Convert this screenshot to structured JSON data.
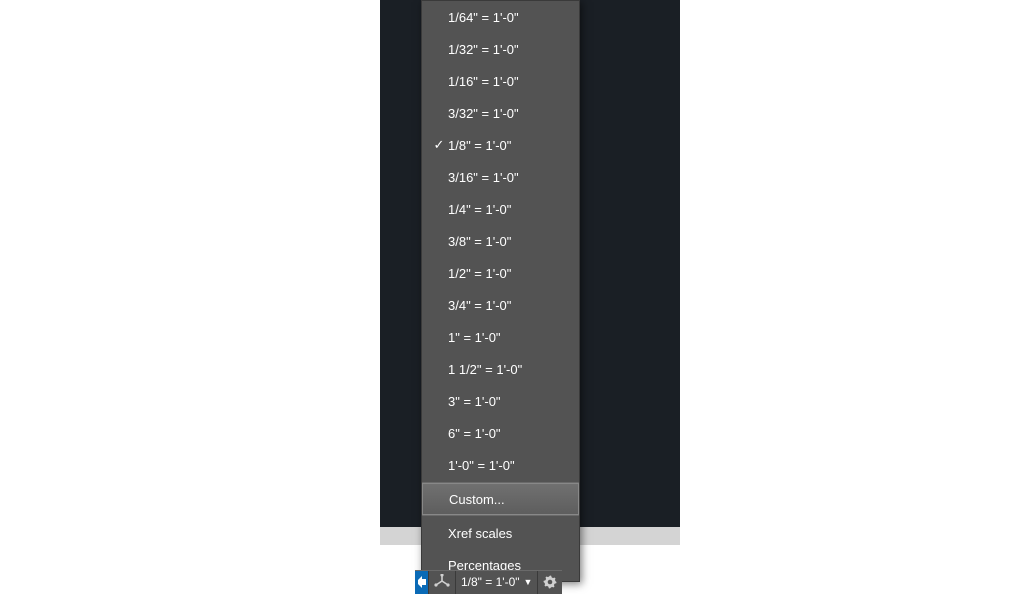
{
  "colors": {
    "menu_bg": "#535353",
    "menu_hover": "#6a6a6a",
    "menu_text": "#ffffff",
    "canvas_bg": "#1a1f25",
    "statusbar_bg": "#535353",
    "accent_blue": "#0a6ab6",
    "separator_dark": "#3e3e3e",
    "separator_light": "#6a6a6a"
  },
  "scale_menu": {
    "selected_index": 4,
    "highlighted_index": 15,
    "scales": [
      {
        "label": "1/64\" = 1'-0\"",
        "checked": false
      },
      {
        "label": "1/32\" = 1'-0\"",
        "checked": false
      },
      {
        "label": "1/16\" = 1'-0\"",
        "checked": false
      },
      {
        "label": "3/32\" = 1'-0\"",
        "checked": false
      },
      {
        "label": "1/8\" = 1'-0\"",
        "checked": true
      },
      {
        "label": "3/16\" = 1'-0\"",
        "checked": false
      },
      {
        "label": "1/4\" = 1'-0\"",
        "checked": false
      },
      {
        "label": "3/8\" = 1'-0\"",
        "checked": false
      },
      {
        "label": "1/2\" = 1'-0\"",
        "checked": false
      },
      {
        "label": "3/4\" = 1'-0\"",
        "checked": false
      },
      {
        "label": "1\" = 1'-0\"",
        "checked": false
      },
      {
        "label": "1 1/2\" = 1'-0\"",
        "checked": false
      },
      {
        "label": "3\" = 1'-0\"",
        "checked": false
      },
      {
        "label": "6\" = 1'-0\"",
        "checked": false
      },
      {
        "label": "1'-0\" = 1'-0\"",
        "checked": false
      }
    ],
    "custom_label": "Custom...",
    "footer_items": [
      {
        "label": "Xref scales"
      },
      {
        "label": "Percentages"
      }
    ]
  },
  "status_bar": {
    "current_scale": "1/8\" = 1'-0\"",
    "icons": {
      "iso": "isometric-icon",
      "gear": "gear-icon"
    }
  }
}
